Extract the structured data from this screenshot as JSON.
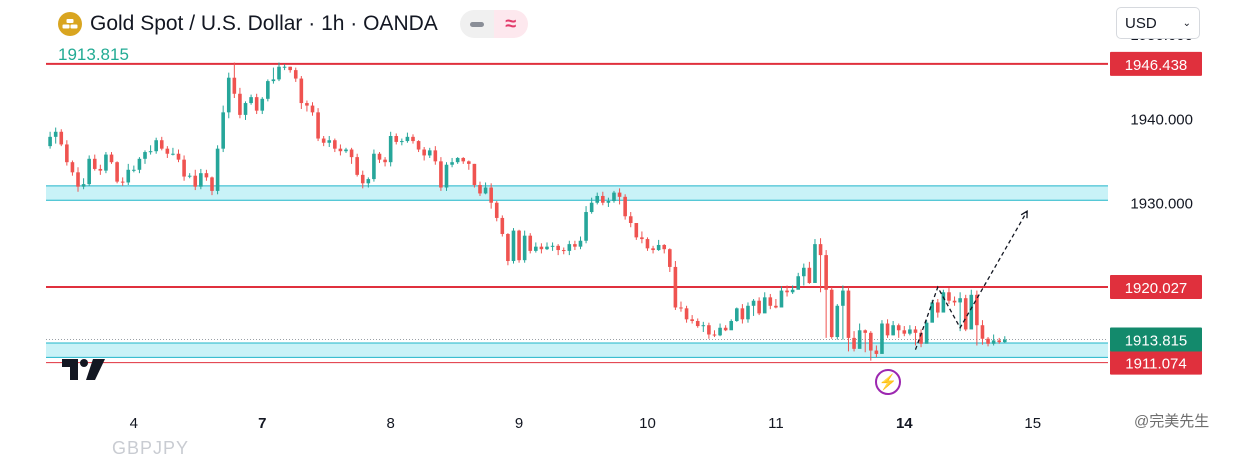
{
  "header": {
    "title": "Gold Spot / U.S. Dollar · 1h · OANDA",
    "last_price": "1913.815",
    "currency": "USD",
    "pill_icon_left": "minus-icon",
    "pill_icon_right": "approx-icon",
    "pill_right_glyph": "≈"
  },
  "watermark": {
    "ghost_text": "GBPJPY",
    "corner_text": "@完美先生"
  },
  "colors": {
    "up": "#26a69a",
    "down": "#ef5350",
    "level_line": "#e0303d",
    "zone_fill": "#c9f2f7",
    "zone_border": "#1fb5c9",
    "last_price_tag": "#138a6c",
    "gold_logo": "#d9a520"
  },
  "chart_data": {
    "type": "candlestick",
    "title": "Gold Spot / U.S. Dollar · 1h · OANDA",
    "ylim": [
      1905.7,
      1954.0
    ],
    "y_ticks": [
      "1950.000",
      "1940.000",
      "1930.000"
    ],
    "y_tick_values": [
      1950.0,
      1940.0,
      1930.0
    ],
    "x_ticks": [
      {
        "label": "4",
        "bold": false,
        "index": 15
      },
      {
        "label": "7",
        "bold": true,
        "index": 38
      },
      {
        "label": "8",
        "bold": false,
        "index": 61
      },
      {
        "label": "9",
        "bold": false,
        "index": 84
      },
      {
        "label": "10",
        "bold": false,
        "index": 107
      },
      {
        "label": "11",
        "bold": false,
        "index": 130
      },
      {
        "label": "14",
        "bold": true,
        "index": 153
      },
      {
        "label": "15",
        "bold": false,
        "index": 176
      }
    ],
    "price_levels": [
      {
        "label": "1946.438",
        "value": 1946.438,
        "kind": "resistance"
      },
      {
        "label": "1920.027",
        "value": 1920.027,
        "kind": "resistance"
      },
      {
        "label": "1911.074",
        "value": 1911.074,
        "kind": "support"
      }
    ],
    "zones": [
      {
        "low": 1930.3,
        "high": 1932.0
      },
      {
        "low": 1911.7,
        "high": 1913.4
      }
    ],
    "last_price": {
      "label": "1913.815",
      "value": 1913.815
    },
    "projection": [
      {
        "index": 155,
        "value": 1912.6
      },
      {
        "index": 159,
        "value": 1920.0
      },
      {
        "index": 163,
        "value": 1915.2
      },
      {
        "index": 175,
        "value": 1929.0
      }
    ],
    "candles": {
      "close": [
        1937.8,
        1938.4,
        1936.9,
        1934.8,
        1933.6,
        1931.9,
        1932.2,
        1935.2,
        1934.0,
        1933.8,
        1935.7,
        1934.8,
        1932.5,
        1932.4,
        1933.9,
        1933.9,
        1935.2,
        1936.0,
        1936.1,
        1937.4,
        1936.4,
        1935.8,
        1935.8,
        1935.1,
        1933.1,
        1933.2,
        1931.9,
        1933.5,
        1933.0,
        1931.4,
        1936.4,
        1940.7,
        1944.8,
        1942.9,
        1940.4,
        1941.8,
        1942.5,
        1940.9,
        1942.3,
        1944.4,
        1944.6,
        1946.1,
        1946.1,
        1945.7,
        1944.7,
        1941.8,
        1941.5,
        1940.7,
        1937.6,
        1937.1,
        1937.4,
        1936.4,
        1936.1,
        1936.3,
        1935.4,
        1933.3,
        1932.3,
        1932.8,
        1935.8,
        1935.1,
        1934.8,
        1937.9,
        1937.2,
        1937.3,
        1937.8,
        1937.3,
        1936.3,
        1935.6,
        1936.2,
        1934.9,
        1931.8,
        1934.5,
        1934.8,
        1935.3,
        1934.9,
        1934.6,
        1932.1,
        1931.1,
        1931.8,
        1930.0,
        1928.2,
        1926.3,
        1923.1,
        1926.7,
        1923.2,
        1926.1,
        1924.3,
        1924.8,
        1924.5,
        1924.8,
        1924.9,
        1924.4,
        1924.3,
        1925.1,
        1924.8,
        1925.5,
        1928.9,
        1930.0,
        1930.8,
        1930.0,
        1930.2,
        1931.2,
        1930.7,
        1928.4,
        1927.6,
        1925.9,
        1925.7,
        1924.6,
        1924.4,
        1925.0,
        1924.5,
        1922.4,
        1917.6,
        1917.5,
        1916.2,
        1916.0,
        1915.4,
        1915.5,
        1914.4,
        1914.3,
        1915.2,
        1914.9,
        1916.0,
        1917.5,
        1916.2,
        1917.8,
        1918.4,
        1916.9,
        1918.8,
        1917.8,
        1917.6,
        1919.6,
        1919.4,
        1919.7,
        1921.3,
        1922.3,
        1920.5,
        1925.1,
        1923.8,
        1919.7,
        1914.1,
        1917.8,
        1919.6,
        1914.0,
        1912.7,
        1914.9,
        1914.6,
        1912.5,
        1912.1,
        1915.7,
        1914.3,
        1915.5,
        1914.9,
        1914.5,
        1915.0,
        1914.6,
        1913.3,
        1915.8,
        1918.2,
        1917.0,
        1919.4,
        1918.4,
        1918.2,
        1918.7,
        1915.0,
        1919.1,
        1915.5,
        1913.9,
        1913.3,
        1913.7,
        1913.5,
        1913.8
      ],
      "open": [
        1936.7,
        1937.8,
        1938.4,
        1936.9,
        1934.8,
        1933.6,
        1931.9,
        1932.2,
        1935.2,
        1934.0,
        1933.8,
        1935.7,
        1934.8,
        1932.5,
        1932.4,
        1933.9,
        1933.9,
        1935.2,
        1936.0,
        1936.1,
        1937.4,
        1936.4,
        1935.8,
        1935.8,
        1935.1,
        1933.1,
        1933.2,
        1931.9,
        1933.5,
        1933.0,
        1931.4,
        1936.4,
        1940.7,
        1944.8,
        1942.9,
        1940.4,
        1941.8,
        1942.5,
        1940.9,
        1942.3,
        1944.4,
        1944.6,
        1946.1,
        1946.1,
        1945.7,
        1944.7,
        1941.8,
        1941.5,
        1940.7,
        1937.6,
        1937.1,
        1937.4,
        1936.4,
        1936.1,
        1936.3,
        1935.4,
        1933.3,
        1932.3,
        1932.8,
        1935.8,
        1935.1,
        1934.8,
        1937.9,
        1937.2,
        1937.3,
        1937.8,
        1937.3,
        1936.3,
        1935.6,
        1936.2,
        1934.9,
        1931.8,
        1934.5,
        1934.8,
        1935.3,
        1934.9,
        1934.6,
        1932.1,
        1931.1,
        1931.8,
        1930.0,
        1928.2,
        1926.3,
        1923.1,
        1926.7,
        1923.2,
        1926.1,
        1924.3,
        1924.8,
        1924.5,
        1924.8,
        1924.9,
        1924.4,
        1924.3,
        1925.1,
        1924.8,
        1925.5,
        1928.9,
        1930.0,
        1930.8,
        1930.0,
        1930.2,
        1931.2,
        1930.7,
        1928.4,
        1927.6,
        1925.9,
        1925.7,
        1924.6,
        1924.4,
        1925.0,
        1924.5,
        1922.4,
        1917.6,
        1917.5,
        1916.2,
        1916.0,
        1915.4,
        1915.5,
        1914.4,
        1914.3,
        1915.2,
        1914.9,
        1916.0,
        1917.5,
        1916.2,
        1917.8,
        1918.4,
        1916.9,
        1918.8,
        1917.8,
        1917.6,
        1919.6,
        1919.4,
        1919.7,
        1921.3,
        1922.3,
        1920.5,
        1925.1,
        1923.8,
        1919.7,
        1914.1,
        1917.8,
        1919.6,
        1914.0,
        1912.7,
        1914.9,
        1914.6,
        1912.5,
        1912.1,
        1915.7,
        1914.3,
        1915.5,
        1914.9,
        1914.5,
        1915.0,
        1914.6,
        1913.3,
        1915.8,
        1918.2,
        1917.0,
        1919.4,
        1918.4,
        1918.2,
        1918.7,
        1915.0,
        1919.1,
        1915.5,
        1913.9,
        1913.3,
        1913.7,
        1913.5
      ],
      "high": [
        1938.4,
        1938.9,
        1938.7,
        1937.4,
        1935.0,
        1934.2,
        1932.9,
        1935.6,
        1935.7,
        1934.5,
        1936.0,
        1936.0,
        1934.9,
        1933.0,
        1934.6,
        1934.4,
        1935.4,
        1936.2,
        1936.8,
        1937.7,
        1937.8,
        1936.7,
        1936.5,
        1936.3,
        1935.6,
        1933.5,
        1933.9,
        1934.0,
        1933.9,
        1933.1,
        1936.8,
        1941.5,
        1945.4,
        1946.6,
        1943.6,
        1942.0,
        1942.8,
        1942.9,
        1942.5,
        1944.6,
        1946.0,
        1946.6,
        1946.4,
        1946.1,
        1946.0,
        1945.0,
        1942.1,
        1941.9,
        1941.2,
        1937.9,
        1937.9,
        1937.6,
        1936.9,
        1936.5,
        1936.5,
        1935.8,
        1933.8,
        1933.0,
        1936.3,
        1936.0,
        1935.4,
        1938.4,
        1938.2,
        1937.6,
        1938.3,
        1938.1,
        1937.4,
        1936.6,
        1936.5,
        1936.7,
        1935.4,
        1934.8,
        1935.3,
        1935.4,
        1935.4,
        1935.0,
        1934.6,
        1932.5,
        1932.4,
        1932.3,
        1930.2,
        1928.5,
        1926.4,
        1927.0,
        1926.8,
        1926.7,
        1926.4,
        1925.3,
        1925.2,
        1925.3,
        1925.3,
        1925.1,
        1924.7,
        1925.5,
        1925.5,
        1926.0,
        1929.6,
        1930.6,
        1931.2,
        1931.3,
        1930.6,
        1931.4,
        1931.7,
        1931.0,
        1928.9,
        1927.6,
        1926.6,
        1925.9,
        1924.9,
        1925.6,
        1925.1,
        1924.6,
        1923.1,
        1918.3,
        1917.8,
        1916.7,
        1916.3,
        1915.9,
        1915.8,
        1914.9,
        1915.7,
        1915.5,
        1916.2,
        1917.6,
        1918.0,
        1918.2,
        1918.6,
        1918.8,
        1919.4,
        1919.2,
        1918.6,
        1920.1,
        1920.2,
        1920.2,
        1921.7,
        1922.8,
        1923.0,
        1925.7,
        1925.8,
        1924.4,
        1920.0,
        1918.0,
        1920.2,
        1920.0,
        1914.8,
        1915.7,
        1915.0,
        1914.8,
        1913.1,
        1916.1,
        1916.2,
        1916.0,
        1915.7,
        1915.4,
        1915.5,
        1915.4,
        1915.0,
        1916.1,
        1918.5,
        1918.6,
        1919.7,
        1919.9,
        1918.9,
        1919.4,
        1919.1,
        1919.7,
        1919.6,
        1916.1,
        1914.1,
        1914.4,
        1914.0,
        1914.2
      ],
      "low": [
        1936.4,
        1937.0,
        1936.7,
        1934.4,
        1933.2,
        1931.3,
        1931.6,
        1932.0,
        1933.8,
        1933.3,
        1933.5,
        1934.6,
        1932.3,
        1932.0,
        1932.1,
        1933.6,
        1933.5,
        1934.6,
        1935.7,
        1935.8,
        1936.2,
        1935.3,
        1935.6,
        1934.8,
        1932.6,
        1932.9,
        1931.5,
        1931.6,
        1932.6,
        1930.9,
        1931.0,
        1936.0,
        1940.0,
        1942.4,
        1940.0,
        1939.8,
        1941.6,
        1940.5,
        1940.5,
        1942.0,
        1944.1,
        1944.4,
        1945.7,
        1945.4,
        1944.3,
        1941.1,
        1940.8,
        1940.3,
        1937.3,
        1936.7,
        1936.6,
        1936.0,
        1935.6,
        1935.9,
        1934.6,
        1933.1,
        1931.7,
        1931.8,
        1932.5,
        1934.7,
        1934.3,
        1934.3,
        1936.9,
        1936.8,
        1937.1,
        1937.0,
        1936.0,
        1935.0,
        1935.3,
        1934.5,
        1931.4,
        1931.4,
        1934.2,
        1934.6,
        1934.6,
        1933.9,
        1931.8,
        1930.8,
        1931.0,
        1929.3,
        1927.8,
        1926.0,
        1922.6,
        1922.8,
        1922.9,
        1922.9,
        1924.0,
        1924.1,
        1924.0,
        1924.4,
        1924.3,
        1923.8,
        1923.9,
        1923.8,
        1924.4,
        1924.5,
        1925.2,
        1928.7,
        1929.8,
        1929.7,
        1929.5,
        1930.0,
        1929.8,
        1928.0,
        1927.1,
        1925.6,
        1925.2,
        1924.3,
        1924.0,
        1924.3,
        1924.0,
        1921.8,
        1917.3,
        1917.1,
        1915.8,
        1915.7,
        1915.2,
        1914.7,
        1913.9,
        1914.1,
        1914.2,
        1914.8,
        1915.5,
        1915.9,
        1915.7,
        1915.8,
        1916.6,
        1916.7,
        1917.6,
        1917.4,
        1917.5,
        1919.0,
        1918.9,
        1919.2,
        1920.2,
        1920.2,
        1920.4,
        1922.9,
        1919.4,
        1914.0,
        1913.9,
        1913.8,
        1913.8,
        1912.4,
        1912.4,
        1914.5,
        1912.3,
        1911.3,
        1911.7,
        1913.5,
        1914.0,
        1914.3,
        1914.0,
        1914.2,
        1914.3,
        1913.1,
        1912.9,
        1915.2,
        1916.5,
        1916.4,
        1917.8,
        1918.0,
        1917.8,
        1914.8,
        1914.8,
        1915.2,
        1913.1,
        1913.2,
        1913.0,
        1913.1,
        1913.3,
        1913.4
      ]
    }
  }
}
